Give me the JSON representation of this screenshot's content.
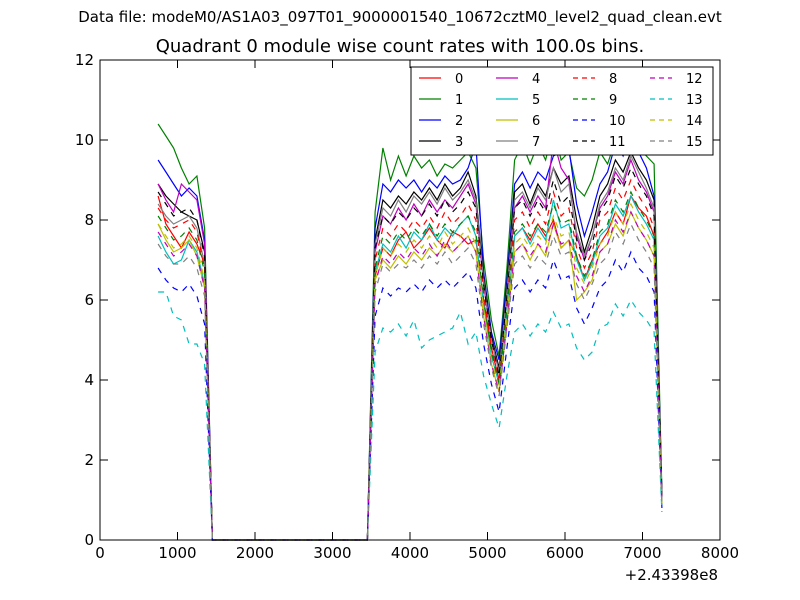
{
  "suptitle": "Data file: modeM0/AS1A03_097T01_9000001540_10672cztM0_level2_quad_clean.evt",
  "chart_data": {
    "type": "line",
    "title": "Quadrant 0 module wise count rates with 100.0s bins.",
    "xlabel": "",
    "ylabel": "",
    "x_offset_label": "+2.43398e8",
    "xlim": [
      0,
      8000
    ],
    "ylim": [
      0,
      12
    ],
    "xticks": [
      0,
      1000,
      2000,
      3000,
      4000,
      5000,
      6000,
      7000,
      8000
    ],
    "yticks": [
      0,
      2,
      4,
      6,
      8,
      10,
      12
    ],
    "grid": false,
    "legend": {
      "placement": "top-right",
      "columns": 4
    },
    "x": [
      750,
      850,
      950,
      1050,
      1150,
      1250,
      1350,
      1450,
      1550,
      3350,
      3450,
      3550,
      3650,
      3750,
      3850,
      3950,
      4050,
      4150,
      4250,
      4350,
      4450,
      4550,
      4650,
      4750,
      4850,
      4950,
      5050,
      5150,
      5250,
      5350,
      5450,
      5550,
      5650,
      5750,
      5850,
      5950,
      6050,
      6150,
      6250,
      6350,
      6450,
      6550,
      6650,
      6750,
      6850,
      6950,
      7050,
      7150,
      7250
    ],
    "series": [
      {
        "name": "0",
        "color": "#ff0000",
        "dash": "solid",
        "values": [
          8.6,
          7.9,
          7.6,
          7.3,
          7.7,
          7.4,
          6.9,
          0,
          0,
          0,
          0,
          6.6,
          7.3,
          7.1,
          7.5,
          7.7,
          7.3,
          7.5,
          7.8,
          7.5,
          7.3,
          7.7,
          7.6,
          7.4,
          7.5,
          6.0,
          4.8,
          4.0,
          5.6,
          7.6,
          7.8,
          7.5,
          7.9,
          7.6,
          8.0,
          7.3,
          7.5,
          7.1,
          6.5,
          7.0,
          7.4,
          7.7,
          8.2,
          7.9,
          8.6,
          8.3,
          8.1,
          7.6,
          1.1
        ]
      },
      {
        "name": "1",
        "color": "#008000",
        "dash": "solid",
        "values": [
          10.4,
          10.1,
          9.8,
          9.3,
          8.9,
          9.1,
          7.8,
          0,
          0,
          0,
          0,
          8.2,
          9.8,
          9.0,
          9.6,
          9.1,
          9.6,
          9.3,
          9.5,
          9.1,
          9.4,
          9.3,
          9.5,
          9.7,
          9.3,
          7.0,
          5.5,
          4.6,
          6.8,
          9.5,
          9.9,
          9.4,
          9.9,
          9.5,
          10.3,
          9.5,
          9.7,
          8.8,
          8.6,
          9.0,
          9.7,
          9.4,
          10.0,
          9.7,
          10.2,
          9.8,
          9.6,
          9.4,
          1.2
        ]
      },
      {
        "name": "2",
        "color": "#0000ff",
        "dash": "solid",
        "values": [
          9.5,
          9.2,
          8.9,
          8.6,
          8.8,
          8.6,
          7.5,
          0,
          0,
          0,
          0,
          7.8,
          8.9,
          8.7,
          9.0,
          8.8,
          9.0,
          8.7,
          9.0,
          8.8,
          9.1,
          8.9,
          9.0,
          9.3,
          9.9,
          6.7,
          5.2,
          4.5,
          6.5,
          8.9,
          9.2,
          8.8,
          9.2,
          9.0,
          9.6,
          9.7,
          9.8,
          8.4,
          7.6,
          8.2,
          8.9,
          9.2,
          9.9,
          9.6,
          10.2,
          9.7,
          9.3,
          8.6,
          1.1
        ]
      },
      {
        "name": "3",
        "color": "#000000",
        "dash": "solid",
        "values": [
          8.9,
          8.6,
          8.4,
          8.2,
          8.1,
          8.0,
          7.2,
          0,
          0,
          0,
          0,
          7.5,
          8.5,
          8.3,
          8.6,
          8.4,
          8.7,
          8.5,
          8.8,
          8.5,
          8.9,
          8.6,
          8.8,
          9.2,
          8.6,
          6.6,
          5.1,
          4.3,
          6.3,
          8.7,
          8.9,
          8.4,
          8.9,
          8.6,
          9.3,
          8.9,
          9.1,
          8.0,
          7.2,
          7.8,
          8.6,
          8.9,
          9.5,
          9.2,
          9.7,
          9.3,
          9.0,
          8.5,
          1.1
        ]
      },
      {
        "name": "4",
        "color": "#bf00bf",
        "dash": "solid",
        "values": [
          8.9,
          8.5,
          8.2,
          8.9,
          8.7,
          8.5,
          7.4,
          0,
          0,
          0,
          0,
          7.2,
          8.1,
          7.9,
          8.3,
          8.0,
          8.4,
          8.1,
          8.5,
          8.2,
          8.5,
          8.3,
          8.6,
          8.9,
          8.4,
          6.4,
          5.0,
          4.2,
          6.1,
          8.3,
          8.6,
          8.2,
          8.6,
          8.3,
          10.0,
          9.3,
          9.0,
          7.6,
          7.0,
          7.6,
          8.3,
          8.6,
          9.2,
          8.9,
          9.5,
          9.0,
          8.7,
          8.2,
          1.0
        ]
      },
      {
        "name": "5",
        "color": "#00bfbf",
        "dash": "solid",
        "values": [
          7.6,
          7.2,
          6.9,
          7.0,
          7.5,
          7.2,
          6.4,
          0,
          0,
          0,
          0,
          6.7,
          7.4,
          7.2,
          7.6,
          7.3,
          7.7,
          7.5,
          7.9,
          7.5,
          7.8,
          7.6,
          7.9,
          8.1,
          7.6,
          5.9,
          4.6,
          3.9,
          5.7,
          7.6,
          7.8,
          7.4,
          7.8,
          7.5,
          8.5,
          7.8,
          7.9,
          7.0,
          6.5,
          6.9,
          7.6,
          7.8,
          8.4,
          8.1,
          8.6,
          8.2,
          7.9,
          7.5,
          0.9
        ]
      },
      {
        "name": "6",
        "color": "#bfbf00",
        "dash": "solid",
        "values": [
          7.9,
          7.5,
          7.2,
          7.3,
          7.5,
          7.1,
          6.3,
          0,
          0,
          0,
          0,
          6.5,
          7.0,
          6.8,
          7.1,
          6.9,
          7.2,
          7.0,
          7.3,
          7.1,
          7.4,
          7.2,
          7.4,
          7.6,
          7.2,
          5.6,
          4.4,
          3.7,
          5.4,
          7.2,
          7.4,
          7.0,
          7.4,
          7.1,
          7.9,
          7.3,
          7.5,
          6.0,
          6.2,
          6.5,
          7.2,
          7.4,
          7.9,
          7.6,
          8.2,
          7.8,
          7.5,
          7.1,
          0.9
        ]
      },
      {
        "name": "7",
        "color": "#808080",
        "dash": "solid",
        "values": [
          8.4,
          8.1,
          7.9,
          8.0,
          8.1,
          7.8,
          6.9,
          0,
          0,
          0,
          0,
          7.4,
          8.3,
          8.1,
          8.5,
          8.2,
          8.6,
          8.4,
          8.7,
          8.4,
          8.8,
          8.5,
          8.7,
          9.0,
          8.5,
          6.5,
          5.0,
          4.2,
          6.2,
          8.5,
          8.7,
          8.3,
          8.8,
          8.5,
          9.3,
          8.7,
          8.9,
          7.7,
          7.1,
          7.6,
          8.4,
          8.7,
          9.3,
          9.0,
          9.6,
          9.2,
          8.8,
          8.3,
          1.0
        ]
      },
      {
        "name": "8",
        "color": "#ff0000",
        "dash": "dashed",
        "values": [
          8.3,
          8.0,
          7.8,
          7.9,
          8.0,
          7.7,
          6.8,
          0,
          0,
          0,
          0,
          7.0,
          7.8,
          7.6,
          7.9,
          7.7,
          8.0,
          7.8,
          8.1,
          7.8,
          8.2,
          7.9,
          8.1,
          8.4,
          8.0,
          6.2,
          4.8,
          4.0,
          5.9,
          8.0,
          8.2,
          7.8,
          8.2,
          7.9,
          8.7,
          8.1,
          8.3,
          7.3,
          6.8,
          7.2,
          8.0,
          8.2,
          8.8,
          8.5,
          9.0,
          8.6,
          8.3,
          7.8,
          1.0
        ]
      },
      {
        "name": "9",
        "color": "#008000",
        "dash": "dashed",
        "values": [
          8.1,
          7.8,
          7.5,
          7.6,
          7.8,
          7.5,
          6.7,
          0,
          0,
          0,
          0,
          6.8,
          7.6,
          7.4,
          7.7,
          7.5,
          7.8,
          7.6,
          7.9,
          7.6,
          7.9,
          7.7,
          7.9,
          8.1,
          7.7,
          6.0,
          4.7,
          3.9,
          5.8,
          7.7,
          7.9,
          7.6,
          7.9,
          7.7,
          8.4,
          7.9,
          8.0,
          7.1,
          6.6,
          7.0,
          7.7,
          7.9,
          8.5,
          8.2,
          8.7,
          8.3,
          8.0,
          7.6,
          0.9
        ]
      },
      {
        "name": "10",
        "color": "#0000ff",
        "dash": "dashed",
        "values": [
          6.8,
          6.5,
          6.3,
          6.2,
          6.4,
          6.1,
          5.4,
          0,
          0,
          0,
          0,
          5.6,
          6.3,
          6.1,
          6.3,
          6.2,
          6.4,
          6.2,
          6.5,
          6.3,
          6.5,
          6.3,
          6.5,
          6.7,
          6.3,
          4.9,
          3.9,
          3.2,
          4.8,
          6.3,
          6.5,
          6.2,
          6.5,
          6.3,
          7.0,
          6.5,
          6.6,
          5.8,
          5.4,
          5.8,
          6.3,
          6.5,
          7.0,
          6.7,
          7.2,
          6.8,
          6.6,
          6.2,
          0.8
        ]
      },
      {
        "name": "11",
        "color": "#000000",
        "dash": "dashed",
        "values": [
          8.7,
          8.4,
          8.1,
          8.2,
          8.3,
          8.0,
          7.1,
          0,
          0,
          0,
          0,
          7.3,
          8.1,
          7.9,
          8.2,
          8.0,
          8.3,
          8.1,
          8.4,
          8.1,
          8.5,
          8.2,
          8.4,
          8.7,
          8.3,
          6.4,
          5.0,
          4.1,
          6.1,
          8.3,
          8.5,
          8.1,
          8.5,
          8.2,
          9.0,
          8.4,
          8.6,
          7.5,
          7.0,
          7.4,
          8.2,
          8.5,
          9.1,
          8.8,
          9.3,
          8.9,
          8.6,
          8.1,
          1.0
        ]
      },
      {
        "name": "12",
        "color": "#bf00bf",
        "dash": "dashed",
        "values": [
          7.7,
          7.4,
          7.1,
          7.2,
          7.4,
          7.1,
          6.3,
          0,
          0,
          0,
          0,
          6.4,
          7.1,
          6.9,
          7.2,
          7.0,
          7.3,
          7.1,
          7.4,
          7.1,
          7.5,
          7.2,
          7.4,
          7.6,
          7.2,
          5.6,
          4.4,
          3.7,
          5.4,
          7.2,
          7.4,
          7.1,
          7.4,
          7.2,
          7.9,
          7.4,
          7.5,
          6.6,
          6.2,
          6.6,
          7.2,
          7.4,
          8.0,
          7.7,
          8.2,
          7.8,
          7.5,
          7.1,
          0.9
        ]
      },
      {
        "name": "13",
        "color": "#00bfbf",
        "dash": "dashed",
        "values": [
          6.2,
          6.2,
          5.6,
          5.5,
          4.9,
          4.9,
          4.4,
          0,
          0,
          0,
          0,
          4.7,
          5.3,
          5.2,
          5.4,
          5.1,
          5.5,
          4.8,
          5.0,
          5.1,
          5.2,
          5.3,
          5.7,
          4.9,
          5.2,
          4.1,
          3.4,
          2.8,
          4.1,
          5.2,
          5.4,
          5.1,
          5.4,
          5.2,
          5.7,
          5.3,
          5.4,
          4.8,
          4.5,
          4.7,
          5.3,
          5.4,
          5.9,
          5.6,
          6.0,
          5.7,
          5.5,
          5.2,
          0.7
        ]
      },
      {
        "name": "14",
        "color": "#bfbf00",
        "dash": "dashed",
        "values": [
          7.9,
          7.6,
          7.3,
          7.4,
          7.6,
          7.3,
          6.5,
          0,
          0,
          0,
          0,
          6.6,
          7.3,
          7.1,
          7.4,
          7.2,
          7.5,
          7.3,
          7.6,
          7.3,
          7.7,
          7.4,
          7.6,
          7.8,
          7.4,
          5.8,
          4.5,
          3.8,
          5.6,
          7.4,
          7.6,
          7.3,
          7.6,
          7.4,
          8.1,
          7.6,
          7.7,
          6.8,
          6.4,
          6.8,
          7.4,
          7.6,
          8.2,
          7.9,
          8.4,
          8.0,
          7.7,
          7.3,
          0.9
        ]
      },
      {
        "name": "15",
        "color": "#808080",
        "dash": "dashed",
        "values": [
          7.4,
          7.1,
          6.9,
          6.9,
          7.1,
          6.8,
          6.1,
          0,
          0,
          0,
          0,
          6.2,
          6.9,
          6.7,
          6.9,
          6.8,
          7.0,
          6.8,
          7.1,
          6.9,
          7.2,
          6.9,
          7.1,
          7.3,
          6.9,
          5.4,
          4.3,
          3.6,
          5.3,
          6.9,
          7.1,
          6.8,
          7.1,
          6.9,
          7.6,
          7.1,
          7.2,
          6.4,
          6.0,
          6.4,
          6.9,
          7.1,
          7.7,
          7.4,
          7.9,
          7.5,
          7.2,
          6.8,
          0.9
        ]
      }
    ]
  }
}
